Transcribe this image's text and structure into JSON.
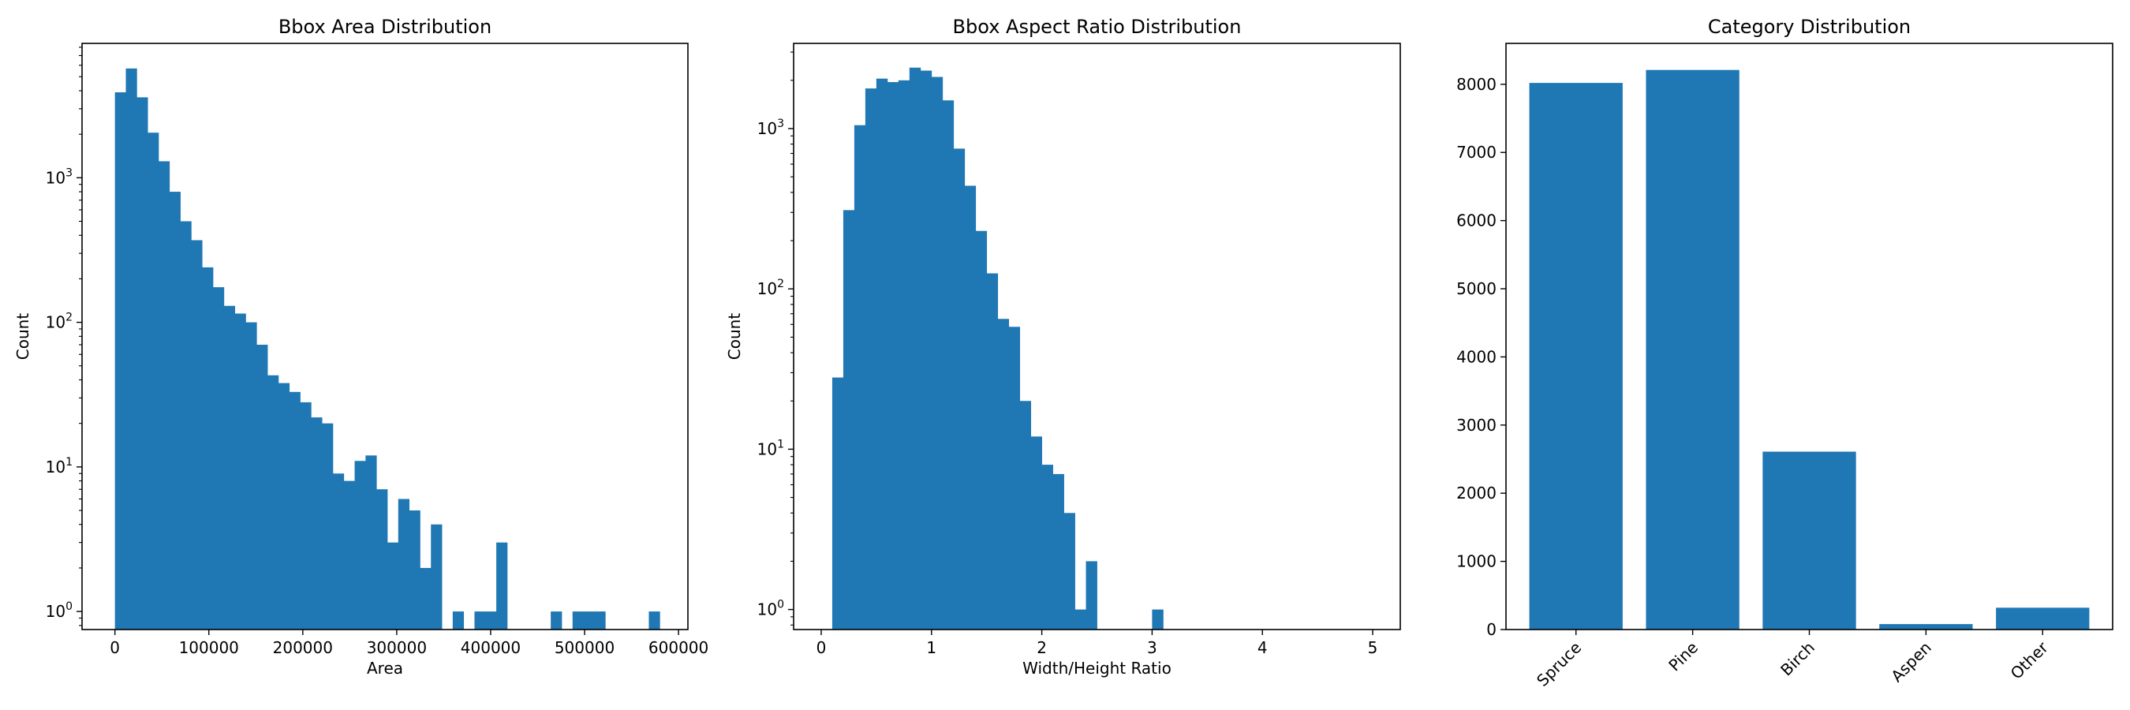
{
  "colors": {
    "bar": "#1f77b4",
    "axes": "#000000",
    "background": "#ffffff"
  },
  "chart_data": [
    {
      "type": "bar",
      "title": "Bbox Area Distribution",
      "xlabel": "Area",
      "ylabel": "Count",
      "yscale": "log",
      "xlim": [
        -35000,
        610000
      ],
      "ylim": [
        0.75,
        8500
      ],
      "grid": false,
      "bin_edges": [
        0,
        11600,
        23200,
        34800,
        46400,
        58000,
        69600,
        81200,
        92800,
        104400,
        116000,
        127600,
        139200,
        150800,
        162400,
        174000,
        185600,
        197200,
        208800,
        220400,
        232000,
        243600,
        255200,
        266800,
        278400,
        290000,
        301600,
        313200,
        324800,
        336400,
        348000,
        359600,
        371200,
        382800,
        394400,
        406000,
        417600,
        429200,
        440800,
        452400,
        464000,
        475600,
        487200,
        498800,
        510400,
        522000,
        533600,
        545200,
        556800,
        568400,
        580000
      ],
      "counts": [
        3900,
        5700,
        3600,
        2050,
        1300,
        800,
        500,
        370,
        240,
        175,
        130,
        115,
        100,
        70,
        43,
        38,
        33,
        28,
        22,
        20,
        9,
        8,
        11,
        12,
        7,
        3,
        6,
        5,
        2,
        4,
        0,
        1,
        0,
        1,
        1,
        3,
        0,
        0,
        0,
        0,
        1,
        0,
        1,
        1,
        1,
        0,
        0,
        0,
        0,
        1
      ],
      "xticks": [
        0,
        100000,
        200000,
        300000,
        400000,
        500000,
        600000
      ],
      "xtick_labels": [
        "0",
        "100000",
        "200000",
        "300000",
        "400000",
        "500000",
        "600000"
      ],
      "yticks": [
        1,
        10,
        100,
        1000
      ],
      "ytick_labels": [
        {
          "base": "10",
          "exp": "0"
        },
        {
          "base": "10",
          "exp": "1"
        },
        {
          "base": "10",
          "exp": "2"
        },
        {
          "base": "10",
          "exp": "3"
        }
      ]
    },
    {
      "type": "bar",
      "title": "Bbox Aspect Ratio Distribution",
      "xlabel": "Width/Height Ratio",
      "ylabel": "Count",
      "yscale": "log",
      "xlim": [
        -0.25,
        5.25
      ],
      "ylim": [
        0.75,
        3400
      ],
      "grid": false,
      "bin_edges": [
        0.1,
        0.2,
        0.3,
        0.4,
        0.5,
        0.6,
        0.7,
        0.8,
        0.9,
        1.0,
        1.1,
        1.2,
        1.3,
        1.4,
        1.5,
        1.6,
        1.7,
        1.8,
        1.9,
        2.0,
        2.1,
        2.2,
        2.3,
        2.4,
        2.5,
        2.6,
        2.7,
        2.8,
        2.9,
        3.0,
        3.1
      ],
      "counts": [
        28,
        310,
        1050,
        1780,
        2050,
        1950,
        2000,
        2400,
        2300,
        2100,
        1500,
        750,
        440,
        230,
        125,
        65,
        58,
        20,
        12,
        8,
        7,
        4,
        1,
        2,
        0,
        0,
        0,
        0,
        0,
        1
      ],
      "xticks": [
        0,
        1,
        2,
        3,
        4,
        5
      ],
      "xtick_labels": [
        "0",
        "1",
        "2",
        "3",
        "4",
        "5"
      ],
      "yticks": [
        1,
        10,
        100,
        1000
      ],
      "ytick_labels": [
        {
          "base": "10",
          "exp": "0"
        },
        {
          "base": "10",
          "exp": "1"
        },
        {
          "base": "10",
          "exp": "2"
        },
        {
          "base": "10",
          "exp": "3"
        }
      ]
    },
    {
      "type": "bar",
      "title": "Category Distribution",
      "xlabel": "",
      "ylabel": "",
      "yscale": "linear",
      "xlim": [
        -0.6,
        4.6
      ],
      "ylim": [
        0,
        8600
      ],
      "grid": false,
      "categories": [
        "Spruce",
        "Pine",
        "Birch",
        "Aspen",
        "Other"
      ],
      "values": [
        8020,
        8210,
        2610,
        80,
        320
      ],
      "yticks": [
        0,
        1000,
        2000,
        3000,
        4000,
        5000,
        6000,
        7000,
        8000
      ],
      "ytick_labels": [
        "0",
        "1000",
        "2000",
        "3000",
        "4000",
        "5000",
        "6000",
        "7000",
        "8000"
      ]
    }
  ]
}
